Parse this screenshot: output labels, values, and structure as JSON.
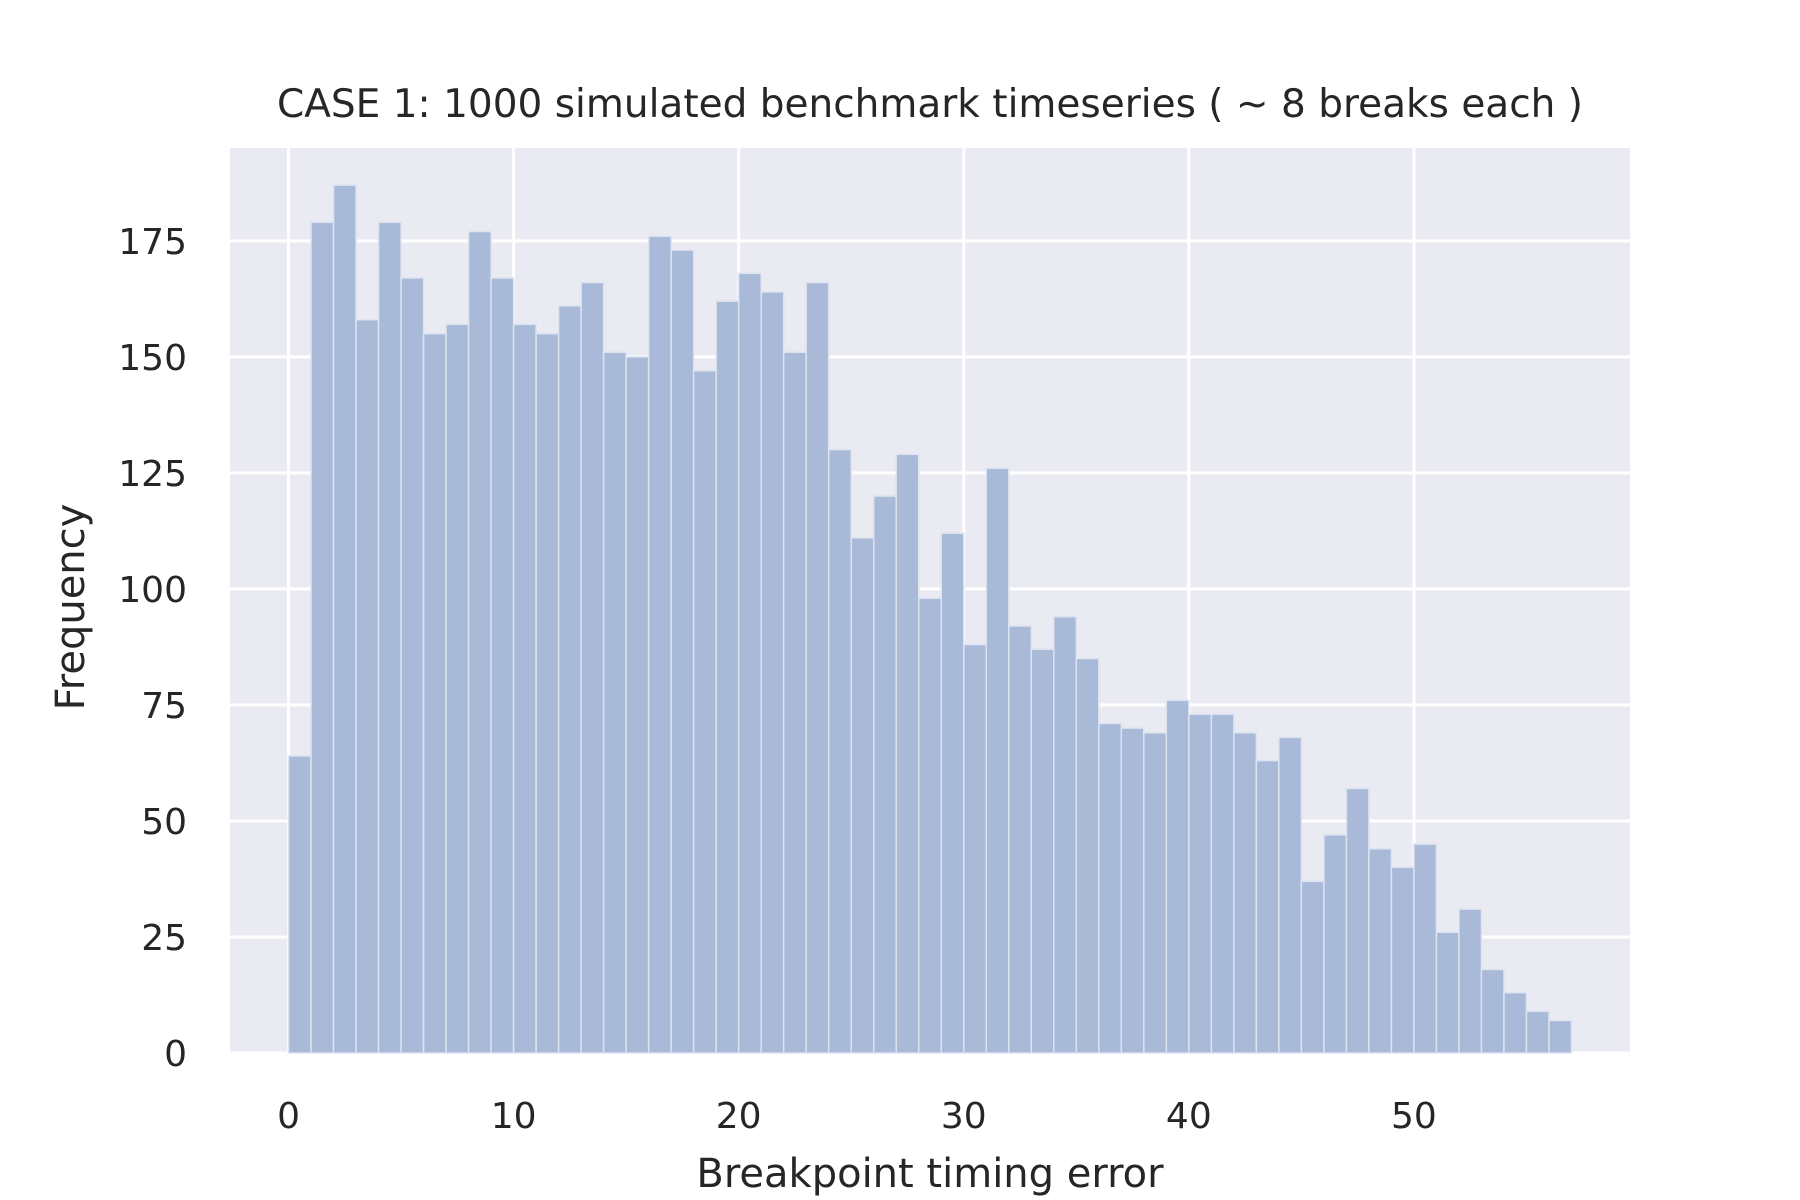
{
  "chart_data": {
    "type": "bar",
    "histogram": true,
    "title": "CASE 1: 1000 simulated benchmark timeseries ( ~ 8 breaks each )",
    "xlabel": "Breakpoint timing error",
    "ylabel": "Frequency",
    "xlim": [
      -2.6,
      59.6
    ],
    "ylim": [
      0,
      195
    ],
    "xticks": [
      0,
      10,
      20,
      30,
      40,
      50
    ],
    "yticks": [
      0,
      25,
      50,
      75,
      100,
      125,
      150,
      175
    ],
    "bin_start": 0,
    "bin_width": 1,
    "values": [
      64,
      179,
      187,
      158,
      179,
      167,
      155,
      157,
      177,
      167,
      157,
      155,
      161,
      166,
      151,
      150,
      176,
      173,
      147,
      162,
      168,
      164,
      151,
      166,
      130,
      111,
      120,
      129,
      98,
      112,
      88,
      126,
      92,
      87,
      94,
      85,
      71,
      70,
      69,
      76,
      73,
      73,
      69,
      63,
      68,
      37,
      47,
      57,
      44,
      40,
      45,
      26,
      31,
      18,
      13,
      9,
      7
    ],
    "grid": true,
    "colors": {
      "background": "#eaeaf2",
      "grid": "#ffffff",
      "bar_fill": "#a9b9d8",
      "bar_edge": "#dde3f0"
    }
  }
}
